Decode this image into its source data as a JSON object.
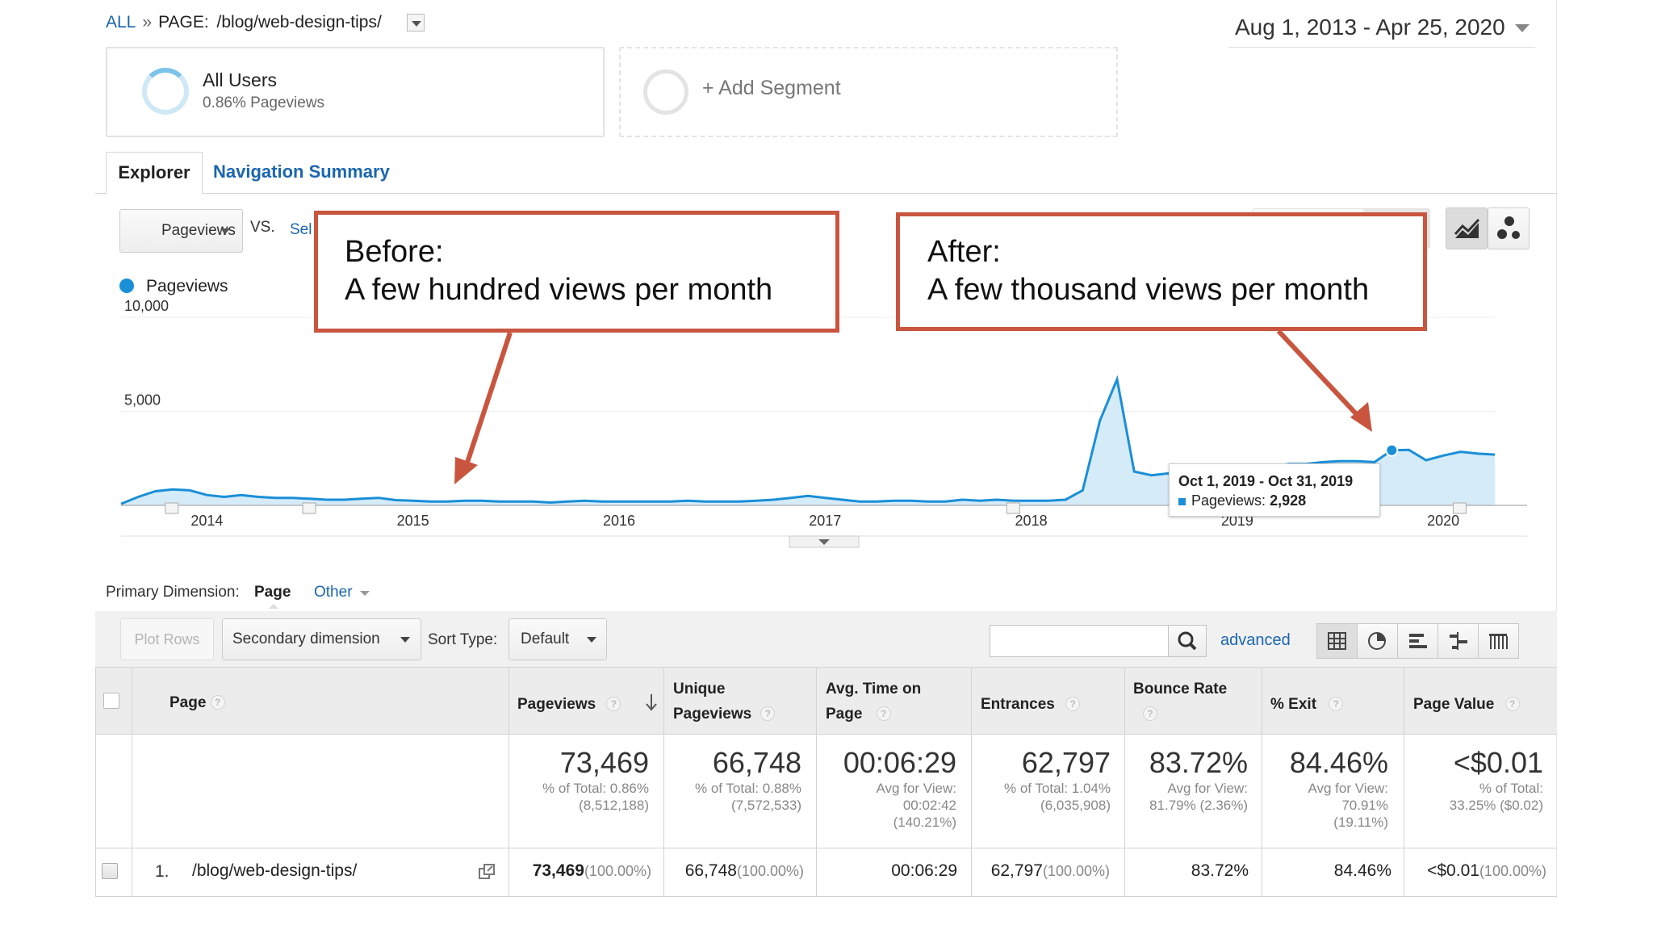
{
  "breadcrumb": {
    "all": "ALL",
    "separator": "»",
    "page_prefix": "PAGE:",
    "page": "/blog/web-design-tips/"
  },
  "date_range": "Aug 1, 2013 - Apr 25, 2020",
  "segments": {
    "active": {
      "name": "All Users",
      "detail": "0.86% Pageviews"
    },
    "add_label": "+ Add Segment"
  },
  "tabs": {
    "explorer": "Explorer",
    "navigation_summary": "Navigation Summary"
  },
  "chart_controls": {
    "metric": "Pageviews",
    "vs": "VS.",
    "select_metric_partial": "Sel"
  },
  "legend": {
    "series": "Pageviews",
    "color": "#1a8fd8"
  },
  "annotations": {
    "before": {
      "line1": "Before:",
      "line2": "A few hundred views per month",
      "color": "#c9553f"
    },
    "after": {
      "line1": "After:",
      "line2": "A few thousand views per month",
      "color": "#c9553f"
    }
  },
  "tooltip": {
    "date": "Oct 1, 2019 - Oct 31, 2019",
    "label": "Pageviews:",
    "value": "2,928"
  },
  "chart_data": {
    "type": "area",
    "series": [
      {
        "name": "Pageviews",
        "color": "#1a8fd8"
      }
    ],
    "y_ticks": [
      {
        "label": "10,000",
        "value": 10000
      },
      {
        "label": "5,000",
        "value": 5000
      }
    ],
    "ylim": [
      0,
      10000
    ],
    "x_tick_labels": [
      "2014",
      "2015",
      "2016",
      "2017",
      "2018",
      "2019",
      "2020"
    ],
    "x": [
      "2013-08",
      "2013-09",
      "2013-10",
      "2013-11",
      "2013-12",
      "2014-01",
      "2014-02",
      "2014-03",
      "2014-04",
      "2014-05",
      "2014-06",
      "2014-07",
      "2014-08",
      "2014-09",
      "2014-10",
      "2014-11",
      "2014-12",
      "2015-01",
      "2015-02",
      "2015-03",
      "2015-04",
      "2015-05",
      "2015-06",
      "2015-07",
      "2015-08",
      "2015-09",
      "2015-10",
      "2015-11",
      "2015-12",
      "2016-01",
      "2016-02",
      "2016-03",
      "2016-04",
      "2016-05",
      "2016-06",
      "2016-07",
      "2016-08",
      "2016-09",
      "2016-10",
      "2016-11",
      "2016-12",
      "2017-01",
      "2017-02",
      "2017-03",
      "2017-04",
      "2017-05",
      "2017-06",
      "2017-07",
      "2017-08",
      "2017-09",
      "2017-10",
      "2017-11",
      "2017-12",
      "2018-01",
      "2018-02",
      "2018-03",
      "2018-04",
      "2018-05",
      "2018-06",
      "2018-07",
      "2018-08",
      "2018-09",
      "2018-10",
      "2018-11",
      "2018-12",
      "2019-01",
      "2019-02",
      "2019-03",
      "2019-04",
      "2019-05",
      "2019-06",
      "2019-07",
      "2019-08",
      "2019-09",
      "2019-10",
      "2019-11",
      "2019-12",
      "2020-01",
      "2020-02",
      "2020-03",
      "2020-04"
    ],
    "y": [
      80,
      450,
      750,
      850,
      800,
      550,
      450,
      550,
      450,
      400,
      400,
      350,
      300,
      300,
      350,
      400,
      280,
      250,
      200,
      200,
      250,
      250,
      200,
      200,
      200,
      150,
      200,
      250,
      200,
      200,
      200,
      200,
      200,
      250,
      200,
      200,
      200,
      250,
      300,
      400,
      500,
      400,
      300,
      200,
      200,
      250,
      250,
      200,
      200,
      300,
      250,
      300,
      250,
      250,
      250,
      300,
      800,
      4500,
      6700,
      1800,
      1600,
      1700,
      1800,
      2000,
      2100,
      2000,
      2100,
      2050,
      2200,
      2200,
      2300,
      2350,
      2350,
      2300,
      2928,
      2950,
      2400,
      2650,
      2850,
      2750,
      2700
    ],
    "highlight_index": 74
  },
  "primary_dimension": {
    "label": "Primary Dimension:",
    "selected": "Page",
    "other": "Other"
  },
  "toolbar": {
    "plot_rows": "Plot Rows",
    "secondary_dimension": "Secondary dimension",
    "sort_type_label": "Sort Type:",
    "sort_type": "Default",
    "search_value": "",
    "advanced": "advanced"
  },
  "table": {
    "headers": {
      "page": "Page",
      "pageviews": "Pageviews",
      "unique_pageviews": [
        "Unique",
        "Pageviews"
      ],
      "avg_time": [
        "Avg. Time on",
        "Page"
      ],
      "entrances": "Entrances",
      "bounce_rate": "Bounce Rate",
      "exit": "% Exit",
      "page_value": "Page Value",
      "help": "?"
    },
    "totals": {
      "pageviews": {
        "value": "73,469",
        "sub": [
          "% of Total: 0.86%",
          "(8,512,188)"
        ]
      },
      "unique_pageviews": {
        "value": "66,748",
        "sub": [
          "% of Total: 0.88%",
          "(7,572,533)"
        ]
      },
      "avg_time": {
        "value": "00:06:29",
        "sub": [
          "Avg for View:",
          "00:02:42",
          "(140.21%)"
        ]
      },
      "entrances": {
        "value": "62,797",
        "sub": [
          "% of Total: 1.04%",
          "(6,035,908)"
        ]
      },
      "bounce_rate": {
        "value": "83.72%",
        "sub": [
          "Avg for View:",
          "81.79% (2.36%)"
        ]
      },
      "exit": {
        "value": "84.46%",
        "sub": [
          "Avg for View:",
          "70.91%",
          "(19.11%)"
        ]
      },
      "page_value": {
        "value": "<$0.01",
        "sub": [
          "% of Total:",
          "33.25% ($0.02)"
        ]
      }
    },
    "rows": [
      {
        "index": "1.",
        "page": "/blog/web-design-tips/",
        "pageviews": "73,469",
        "pageviews_pct": "(100.00%)",
        "unique_pageviews": "66,748",
        "unique_pageviews_pct": "(100.00%)",
        "avg_time": "00:06:29",
        "entrances": "62,797",
        "entrances_pct": "(100.00%)",
        "bounce_rate": "83.72%",
        "exit": "84.46%",
        "page_value": "<$0.01",
        "page_value_pct": "(100.00%)"
      }
    ]
  }
}
